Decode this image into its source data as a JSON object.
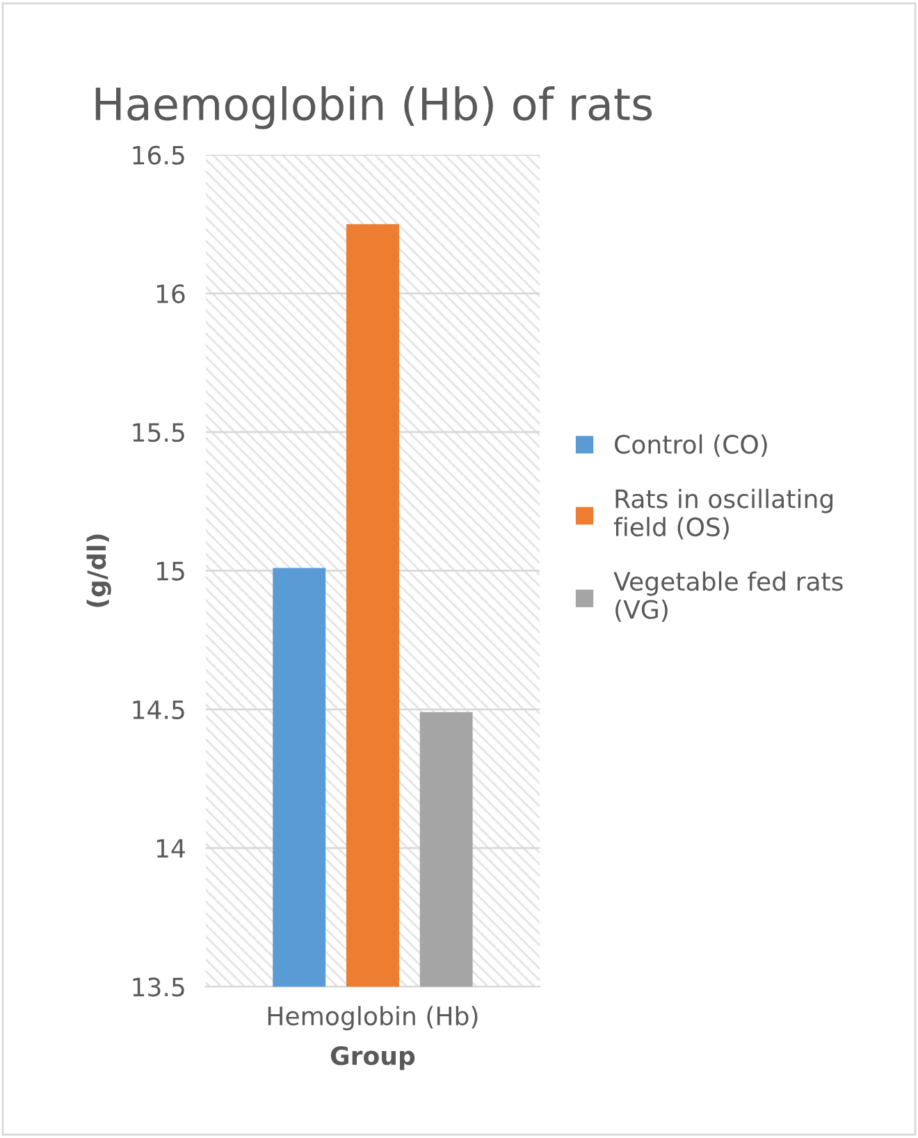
{
  "chart_data": {
    "type": "bar",
    "title": "Haemoglobin (Hb) of rats",
    "xlabel": "Group",
    "ylabel": "(g/dl)",
    "categories": [
      "Hemoglobin (Hb)"
    ],
    "series": [
      {
        "name": "Control (CO)",
        "color": "#5b9bd5",
        "values": [
          15.01
        ]
      },
      {
        "name": "Rats in oscillating field (OS)",
        "color": "#ed7d31",
        "values": [
          16.25
        ]
      },
      {
        "name": "Vegetable fed rats (VG)",
        "color": "#a5a5a5",
        "values": [
          14.49
        ]
      }
    ],
    "ylim": [
      13.5,
      16.5
    ],
    "yticks": [
      13.5,
      14,
      14.5,
      15,
      15.5,
      16,
      16.5
    ],
    "grid": "y",
    "legend": "right"
  }
}
